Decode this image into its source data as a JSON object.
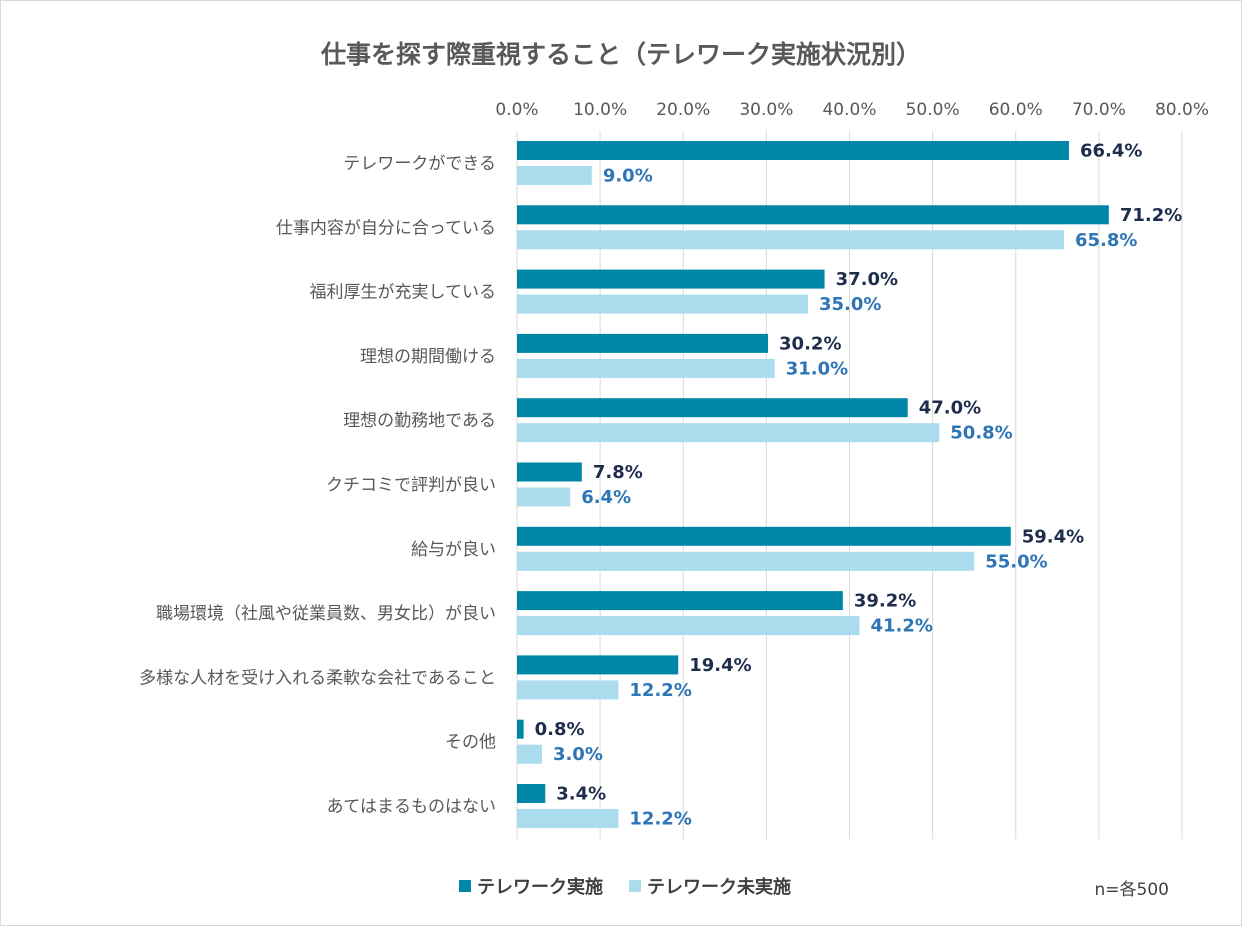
{
  "chart_data": {
    "type": "bar",
    "orientation": "horizontal",
    "title": "仕事を探す際重視すること（テレワーク実施状況別）",
    "note": "n=各500",
    "xlim": [
      0,
      80
    ],
    "x_ticks": [
      "0.0%",
      "10.0%",
      "20.0%",
      "30.0%",
      "40.0%",
      "50.0%",
      "60.0%",
      "70.0%",
      "80.0%"
    ],
    "grid": "vertical",
    "legend_position": "bottom",
    "categories": [
      "テレワークができる",
      "仕事内容が自分に合っている",
      "福利厚生が充実している",
      "理想の期間働ける",
      "理想の勤務地である",
      "クチコミで評判が良い",
      "給与が良い",
      "職場環境（社風や従業員数、男女比）が良い",
      "多様な人材を受け入れる柔軟な会社であること",
      "その他",
      "あてはまるものはない"
    ],
    "series": [
      {
        "name": "テレワーク実施",
        "color": "#0087a8",
        "label_color": "#1f2d4d",
        "values": [
          66.4,
          71.2,
          37.0,
          30.2,
          47.0,
          7.8,
          59.4,
          39.2,
          19.4,
          0.8,
          3.4
        ],
        "labels": [
          "66.4%",
          "71.2%",
          "37.0%",
          "30.2%",
          "47.0%",
          "7.8%",
          "59.4%",
          "39.2%",
          "19.4%",
          "0.8%",
          "3.4%"
        ]
      },
      {
        "name": "テレワーク未実施",
        "color": "#aadced",
        "label_color": "#2e75b6",
        "values": [
          9.0,
          65.8,
          35.0,
          31.0,
          50.8,
          6.4,
          55.0,
          41.2,
          12.2,
          3.0,
          12.2
        ],
        "labels": [
          "9.0%",
          "65.8%",
          "35.0%",
          "31.0%",
          "50.8%",
          "6.4%",
          "55.0%",
          "41.2%",
          "12.2%",
          "3.0%",
          "12.2%"
        ]
      }
    ]
  }
}
